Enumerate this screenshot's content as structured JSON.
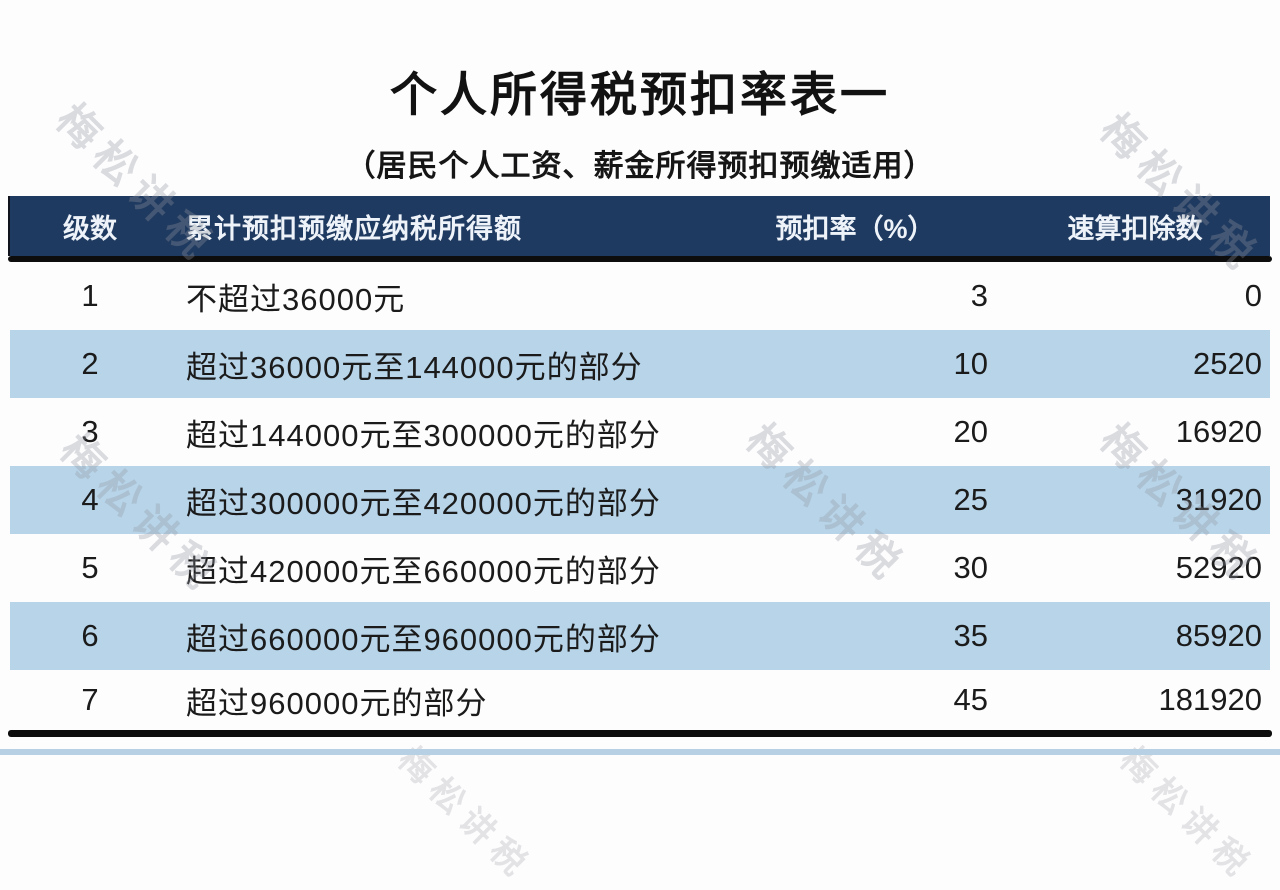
{
  "title": "个人所得税预扣率表一",
  "subtitle": "（居民个人工资、薪金所得预扣预缴适用）",
  "watermark": {
    "text": "梅松讲税"
  },
  "colors": {
    "header_bg": "#1f3a60",
    "header_text": "#eef3f9",
    "row_alt_bg": "#b7d4e9",
    "divider": "#0d0d0d",
    "bottom_strip": "#b7d0e4"
  },
  "table": {
    "columns": [
      "级数",
      "累计预扣预缴应纳税所得额",
      "预扣率（%）",
      "速算扣除数"
    ],
    "rows": [
      {
        "level": "1",
        "bracket": "不超过36000元",
        "rate": "3",
        "deduction": "0"
      },
      {
        "level": "2",
        "bracket": "超过36000元至144000元的部分",
        "rate": "10",
        "deduction": "2520"
      },
      {
        "level": "3",
        "bracket": "超过144000元至300000元的部分",
        "rate": "20",
        "deduction": "16920"
      },
      {
        "level": "4",
        "bracket": "超过300000元至420000元的部分",
        "rate": "25",
        "deduction": "31920"
      },
      {
        "level": "5",
        "bracket": "超过420000元至660000元的部分",
        "rate": "30",
        "deduction": "52920"
      },
      {
        "level": "6",
        "bracket": "超过660000元至960000元的部分",
        "rate": "35",
        "deduction": "85920"
      },
      {
        "level": "7",
        "bracket": "超过960000元的部分",
        "rate": "45",
        "deduction": "181920"
      }
    ]
  }
}
